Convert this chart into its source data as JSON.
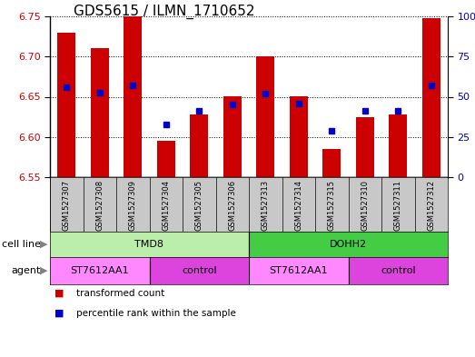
{
  "title": "GDS5615 / ILMN_1710652",
  "samples": [
    "GSM1527307",
    "GSM1527308",
    "GSM1527309",
    "GSM1527304",
    "GSM1527305",
    "GSM1527306",
    "GSM1527313",
    "GSM1527314",
    "GSM1527315",
    "GSM1527310",
    "GSM1527311",
    "GSM1527312"
  ],
  "bar_values": [
    6.73,
    6.71,
    6.75,
    6.595,
    6.628,
    6.65,
    6.7,
    6.65,
    6.585,
    6.625,
    6.628,
    6.748
  ],
  "bar_bottom": 6.55,
  "percentile_values": [
    6.662,
    6.655,
    6.664,
    6.615,
    6.632,
    6.64,
    6.654,
    6.642,
    6.608,
    6.632,
    6.632,
    6.664
  ],
  "ylim_left": [
    6.55,
    6.75
  ],
  "yticks_left": [
    6.55,
    6.6,
    6.65,
    6.7,
    6.75
  ],
  "ylim_right": [
    0,
    100
  ],
  "yticks_right": [
    0,
    25,
    50,
    75,
    100
  ],
  "yticklabels_right": [
    "0",
    "25",
    "50",
    "75",
    "100%"
  ],
  "bar_color": "#cc0000",
  "percentile_color": "#0000cc",
  "grid_color": "black",
  "cell_line_groups": [
    {
      "label": "TMD8",
      "start": 0,
      "end": 6,
      "color": "#bbeeaa"
    },
    {
      "label": "DOHH2",
      "start": 6,
      "end": 12,
      "color": "#44cc44"
    }
  ],
  "agent_groups": [
    {
      "label": "ST7612AA1",
      "start": 0,
      "end": 3,
      "color": "#ff88ff"
    },
    {
      "label": "control",
      "start": 3,
      "end": 6,
      "color": "#dd44dd"
    },
    {
      "label": "ST7612AA1",
      "start": 6,
      "end": 9,
      "color": "#ff88ff"
    },
    {
      "label": "control",
      "start": 9,
      "end": 12,
      "color": "#dd44dd"
    }
  ],
  "label_cell_line": "cell line",
  "label_agent": "agent",
  "legend_items": [
    {
      "label": "transformed count",
      "color": "#cc0000"
    },
    {
      "label": "percentile rank within the sample",
      "color": "#0000cc"
    }
  ],
  "bar_width": 0.55,
  "left_label_color": "#cc0000",
  "right_label_color": "#0000cc",
  "xtick_gray": "#c8c8c8",
  "title_fontsize": 11,
  "axis_fontsize": 8,
  "sample_fontsize": 6,
  "legend_fontsize": 7.5,
  "row_label_fontsize": 8,
  "marker_size": 5
}
